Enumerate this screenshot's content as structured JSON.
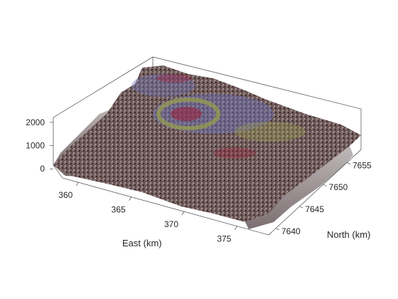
{
  "chart_data": {
    "type": "surface",
    "title": "",
    "xlabel": "East (km)",
    "ylabel": "North (km)",
    "zlabel": "",
    "xlim": [
      358.5,
      378
    ],
    "ylim": [
      7638.5,
      7658
    ],
    "zlim": [
      -300,
      2300
    ],
    "x_ticks": [
      360,
      365,
      370,
      375
    ],
    "y_ticks": [
      7640,
      7645,
      7650,
      7655
    ],
    "z_ticks": [
      0,
      1000,
      2000
    ],
    "x_tick_labels": [
      "360",
      "365",
      "370",
      "375"
    ],
    "y_tick_labels": [
      "7640",
      "7645",
      "7650",
      "7655"
    ],
    "z_tick_labels": [
      "0",
      "1000",
      "2000"
    ],
    "grid": false,
    "box": true,
    "colors": {
      "terrain_base": "#6e5a58",
      "terrain_dark": "#3b2a2e",
      "highlight_blue": "#6d72b8",
      "highlight_olive": "#9aa04a",
      "highlight_red": "#9a1f3a"
    }
  }
}
